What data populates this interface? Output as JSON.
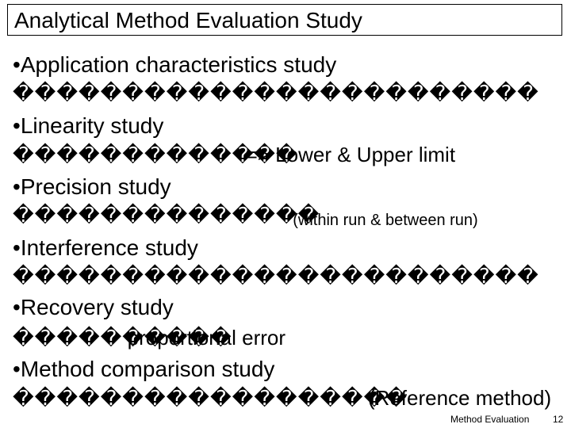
{
  "slide": {
    "title": "Analytical Method Evaluation Study",
    "items": [
      {
        "heading": "Application characteristics study",
        "sub": "������������������������",
        "sub_extra": ""
      },
      {
        "heading": "Linearity study",
        "sub": "�������������",
        "sub_extra": "=> Lower & Upper limit"
      },
      {
        "heading": "Precision study",
        "sub": "��������������",
        "sub_extra": "(within run & between run)"
      },
      {
        "heading": "Interference study",
        "sub": "������������������������",
        "sub_extra": ""
      },
      {
        "heading": "Recovery study",
        "sub": "����������",
        "sub_extra": "proportional error"
      },
      {
        "heading": "Method comparison study",
        "sub": "������������������",
        "sub_extra": "(Reference method)"
      }
    ]
  },
  "footer": {
    "label": "Method Evaluation",
    "page": "12"
  }
}
